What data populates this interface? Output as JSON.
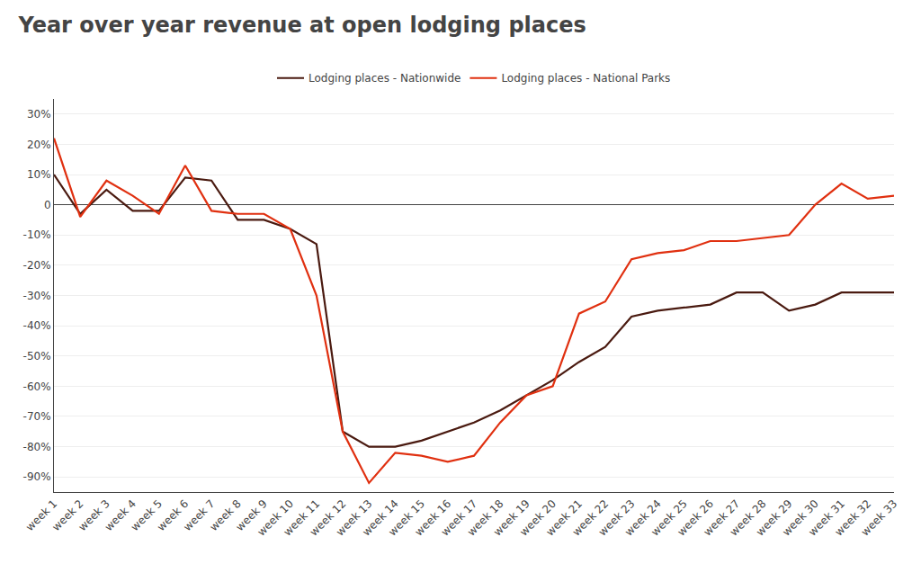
{
  "chart_data": {
    "type": "line",
    "title": "Year over year revenue at open lodging places",
    "categories": [
      "week 1",
      "week 2",
      "week 3",
      "week 4",
      "week 5",
      "week 6",
      "week 7",
      "week 8",
      "week 9",
      "week 10",
      "week 11",
      "week 12",
      "week 13",
      "week 14",
      "week 15",
      "week 16",
      "week 17",
      "week 18",
      "week 19",
      "week 20",
      "week 21",
      "week 22",
      "week 23",
      "week 24",
      "week 25",
      "week 26",
      "week 27",
      "week 28",
      "week 29",
      "week 30",
      "week 31",
      "week 32",
      "week 33"
    ],
    "series": [
      {
        "name": "Lodging places - Nationwide",
        "color": "#4a1a10",
        "values": [
          10,
          -3,
          5,
          -2,
          -2,
          9,
          8,
          -5,
          -5,
          -8,
          -13,
          -75,
          -80,
          -80,
          -78,
          -75,
          -72,
          -68,
          -63,
          -58,
          -52,
          -47,
          -37,
          -35,
          -34,
          -33,
          -29,
          -29,
          -35,
          -33,
          -29,
          -29,
          -29
        ]
      },
      {
        "name": "Lodging places - National Parks",
        "color": "#e03010",
        "values": [
          22,
          -4,
          8,
          3,
          -3,
          13,
          -2,
          -3,
          -3,
          -8,
          -30,
          -75,
          -92,
          -82,
          -83,
          -85,
          -83,
          -72,
          -63,
          -60,
          -36,
          -32,
          -18,
          -16,
          -15,
          -12,
          -12,
          -11,
          -10,
          0,
          7,
          2,
          3
        ]
      }
    ],
    "ylim": [
      -95,
      35
    ],
    "yticks": [
      {
        "value": 30,
        "label": "30%"
      },
      {
        "value": 20,
        "label": "20%"
      },
      {
        "value": 10,
        "label": "10%"
      },
      0,
      {
        "value": -10,
        "label": "-10%"
      },
      {
        "value": -20,
        "label": "-20%"
      },
      {
        "value": -30,
        "label": "-30%"
      },
      {
        "value": -40,
        "label": "-40%"
      },
      {
        "value": -50,
        "label": "-50%"
      },
      {
        "value": -60,
        "label": "-60%"
      },
      {
        "value": -70,
        "label": "-70%"
      },
      {
        "value": -80,
        "label": "-80%"
      },
      {
        "value": -90,
        "label": "-90%"
      }
    ],
    "grid": true,
    "legend": "top"
  }
}
